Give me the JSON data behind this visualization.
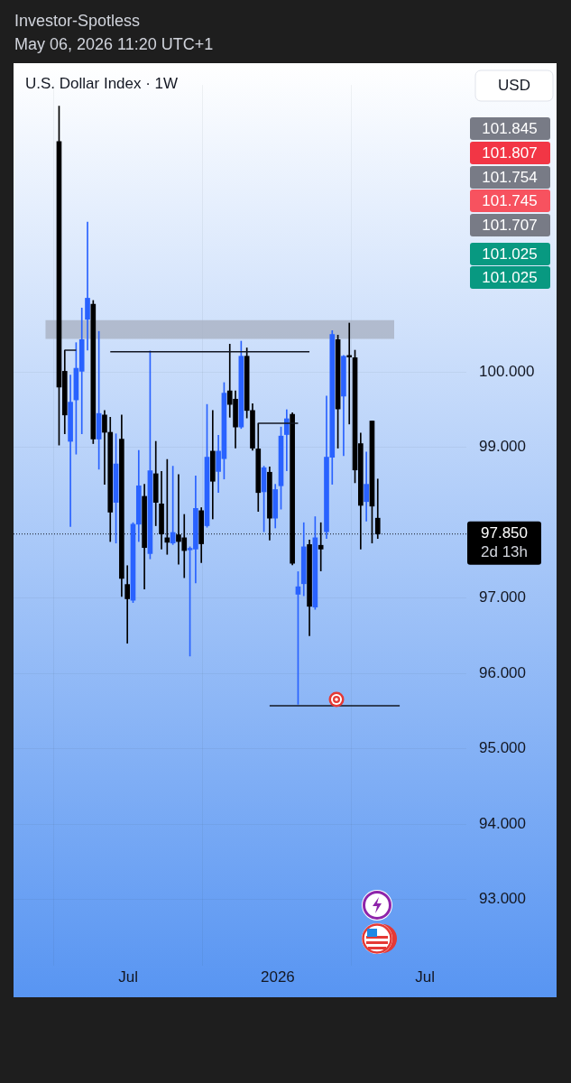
{
  "chart_data": {
    "type": "candlestick",
    "title": "U.S. Dollar Index · 1W",
    "x": [
      "2025-04-07",
      "2025-04-14",
      "2025-04-21",
      "2025-04-28",
      "2025-05-05",
      "2025-05-12",
      "2025-05-19",
      "2025-05-26",
      "2025-06-02",
      "2025-06-09",
      "2025-06-16",
      "2025-06-23",
      "2025-06-30",
      "2025-07-07",
      "2025-07-14",
      "2025-07-21",
      "2025-07-28",
      "2025-08-04",
      "2025-08-11",
      "2025-08-18",
      "2025-08-25",
      "2025-09-01",
      "2025-09-08",
      "2025-09-15",
      "2025-09-22",
      "2025-09-29",
      "2025-10-06",
      "2025-10-13",
      "2025-10-20",
      "2025-10-27",
      "2025-11-03",
      "2025-11-10",
      "2025-11-17",
      "2025-11-24",
      "2025-12-01",
      "2025-12-08",
      "2025-12-15",
      "2025-12-22",
      "2025-12-29",
      "2026-01-05",
      "2026-01-12",
      "2026-01-19",
      "2026-01-26",
      "2026-02-02",
      "2026-02-09",
      "2026-02-16",
      "2026-02-23",
      "2026-03-02",
      "2026-03-09",
      "2026-03-16",
      "2026-03-23",
      "2026-03-30",
      "2026-04-06",
      "2026-04-13",
      "2026-04-20",
      "2026-04-27",
      "2026-05-04"
    ],
    "ohlc": [
      [
        103.06,
        103.53,
        99.03,
        99.8
      ],
      [
        100.01,
        100.29,
        99.18,
        99.43
      ],
      [
        99.08,
        99.96,
        97.95,
        99.6
      ],
      [
        99.63,
        100.39,
        98.91,
        100.05
      ],
      [
        100.01,
        100.85,
        99.18,
        100.43
      ],
      [
        100.7,
        101.99,
        100.29,
        100.98
      ],
      [
        100.9,
        100.95,
        99.05,
        99.11
      ],
      [
        99.11,
        100.54,
        98.71,
        99.45
      ],
      [
        99.43,
        99.49,
        98.51,
        99.2
      ],
      [
        99.2,
        99.4,
        97.75,
        98.14
      ],
      [
        98.27,
        99.18,
        97.73,
        98.78
      ],
      [
        99.11,
        99.43,
        97.02,
        97.26
      ],
      [
        97.18,
        97.43,
        96.4,
        96.99
      ],
      [
        96.97,
        98.0,
        96.94,
        97.98
      ],
      [
        97.98,
        98.96,
        97.75,
        98.49
      ],
      [
        98.35,
        98.51,
        97.12,
        97.67
      ],
      [
        97.59,
        100.28,
        97.52,
        98.69
      ],
      [
        98.65,
        99.08,
        97.96,
        98.27
      ],
      [
        98.25,
        98.68,
        97.65,
        97.85
      ],
      [
        97.8,
        98.84,
        97.58,
        97.74
      ],
      [
        97.73,
        98.75,
        97.71,
        97.87
      ],
      [
        97.84,
        98.64,
        97.45,
        97.75
      ],
      [
        97.8,
        98.11,
        97.27,
        97.63
      ],
      [
        97.64,
        97.68,
        96.23,
        97.66
      ],
      [
        97.65,
        98.62,
        97.2,
        98.19
      ],
      [
        98.16,
        98.2,
        97.47,
        97.72
      ],
      [
        97.96,
        99.57,
        97.94,
        98.87
      ],
      [
        98.95,
        99.49,
        98.05,
        98.55
      ],
      [
        98.68,
        99.16,
        98.4,
        98.95
      ],
      [
        98.85,
        99.86,
        98.58,
        99.72
      ],
      [
        99.75,
        100.37,
        99.4,
        99.57
      ],
      [
        99.64,
        99.75,
        98.99,
        99.27
      ],
      [
        99.27,
        100.41,
        99.25,
        100.21
      ],
      [
        100.21,
        100.32,
        99.39,
        99.49
      ],
      [
        99.49,
        99.58,
        98.96,
        98.99
      ],
      [
        98.98,
        99.32,
        98.15,
        98.4
      ],
      [
        98.41,
        98.75,
        97.88,
        98.73
      ],
      [
        98.67,
        98.74,
        97.77,
        98.06
      ],
      [
        98.06,
        98.51,
        97.93,
        98.44
      ],
      [
        98.49,
        99.27,
        98.18,
        99.15
      ],
      [
        99.17,
        99.5,
        98.69,
        99.38
      ],
      [
        99.44,
        99.46,
        97.44,
        97.46
      ],
      [
        97.05,
        97.35,
        95.59,
        97.15
      ],
      [
        97.19,
        98.0,
        97.03,
        97.68
      ],
      [
        97.71,
        97.77,
        96.5,
        96.89
      ],
      [
        96.88,
        98.08,
        96.85,
        97.8
      ],
      [
        97.7,
        98.0,
        97.36,
        97.65
      ],
      [
        97.88,
        99.68,
        97.79,
        98.87
      ],
      [
        98.87,
        100.55,
        98.51,
        100.5
      ],
      [
        100.43,
        100.49,
        98.99,
        99.51
      ],
      [
        99.68,
        100.22,
        98.89,
        100.21
      ],
      [
        100.22,
        100.65,
        99.31,
        100.2
      ],
      [
        100.19,
        100.29,
        98.53,
        98.7
      ],
      [
        99.05,
        99.19,
        97.65,
        98.23
      ],
      [
        98.28,
        98.94,
        98.02,
        98.51
      ],
      [
        99.35,
        99.35,
        97.73,
        98.22
      ],
      [
        98.06,
        98.58,
        97.79,
        97.85
      ]
    ],
    "colors": [
      "#000000",
      "#000000",
      "#2962ff",
      "#2962ff",
      "#2962ff",
      "#2962ff",
      "#000000",
      "#2962ff",
      "#000000",
      "#000000",
      "#2962ff",
      "#000000",
      "#000000",
      "#2962ff",
      "#2962ff",
      "#000000",
      "#2962ff",
      "#000000",
      "#000000",
      "#000000",
      "#2962ff",
      "#000000",
      "#000000",
      "#2962ff",
      "#2962ff",
      "#000000",
      "#2962ff",
      "#000000",
      "#2962ff",
      "#2962ff",
      "#000000",
      "#000000",
      "#2962ff",
      "#000000",
      "#000000",
      "#000000",
      "#2962ff",
      "#000000",
      "#2962ff",
      "#2962ff",
      "#2962ff",
      "#000000",
      "#2962ff",
      "#2962ff",
      "#000000",
      "#2962ff",
      "#000000",
      "#2962ff",
      "#2962ff",
      "#000000",
      "#2962ff",
      "#000000",
      "#000000",
      "#000000",
      "#2962ff",
      "#000000",
      "#000000"
    ],
    "series": [
      {
        "type": "line",
        "color": "#131722",
        "x": [
          "2025-04-14",
          "2025-04-28"
        ],
        "values": [
          100.29,
          100.29
        ]
      },
      {
        "type": "line",
        "color": "#131722",
        "x": [
          "2025-06-09",
          "2026-02-09"
        ],
        "values": [
          100.27,
          100.27
        ]
      },
      {
        "type": "line",
        "color": "#131722",
        "x": [
          "2025-12-08",
          "2026-01-26"
        ],
        "values": [
          99.32,
          99.32
        ]
      },
      {
        "type": "line",
        "color": "#131722",
        "x": [
          "2025-12-22",
          "2026-05-31"
        ],
        "values": [
          95.57,
          95.57
        ]
      }
    ],
    "bands": [
      {
        "axis": "y",
        "from": 100.44,
        "to": 100.69,
        "color": "#a9b2c3"
      }
    ],
    "ref_lines": [
      {
        "axis": "y",
        "value": 97.85,
        "label": "97.850",
        "line_style": "dotted",
        "color": "#131722"
      }
    ],
    "annotations": [
      "Investor-Spotless",
      "May 06, 2026 11:20 UTC+1",
      "USD",
      "101.845",
      "101.807",
      "101.754",
      "101.745",
      "101.707",
      "101.025",
      "101.025",
      "2d 13h"
    ],
    "xlim": [
      "2025-02-10",
      "2026-08-21"
    ],
    "xticks": [
      {
        "value": "2025-07-01",
        "label": "Jul"
      },
      {
        "value": "2026-01-01",
        "label": "2026"
      },
      {
        "value": "2026-07-01",
        "label": "Jul"
      }
    ],
    "ylim": [
      92.12,
      103.81
    ],
    "yticks": [
      {
        "value": 93,
        "label": "93.000"
      },
      {
        "value": 94,
        "label": "94.000"
      },
      {
        "value": 95,
        "label": "95.000"
      },
      {
        "value": 96,
        "label": "96.000"
      },
      {
        "value": 97,
        "label": "97.000"
      },
      {
        "value": 99,
        "label": "99.000"
      },
      {
        "value": 100,
        "label": "100.000"
      }
    ],
    "grid": true,
    "legend": false
  }
}
